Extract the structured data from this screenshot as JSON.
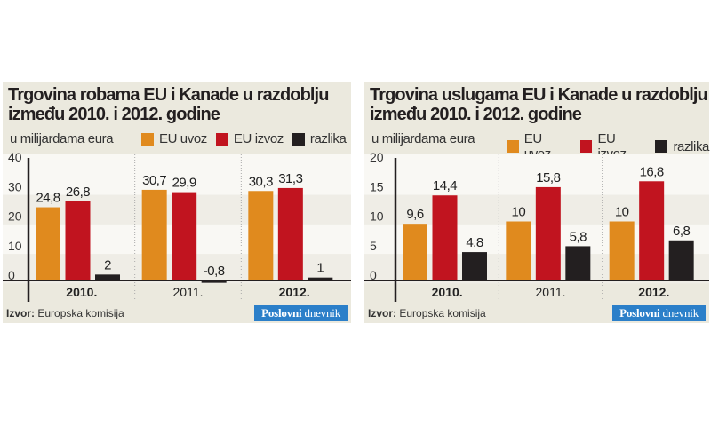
{
  "colors": {
    "EU uvoz": "#e08a1e",
    "EU izvoz": "#c1141f",
    "razlika": "#231f20",
    "background": "#ebe9de",
    "logo": "#2b7fc9"
  },
  "source_label": "Izvor:",
  "source_text": "Europska komisija",
  "logo": {
    "part1": "Poslovni",
    "part2": "dnevnik"
  },
  "chart_data": [
    {
      "type": "bar",
      "title_line1": "Trgovina robama EU i Kanade u razdoblju",
      "title_line2": "između 2010. i 2012. godine",
      "subtitle": "u milijardama eura",
      "categories": [
        "2010.",
        "2011.",
        "2012."
      ],
      "category_bold": [
        true,
        false,
        true
      ],
      "series": [
        {
          "name": "EU uvoz",
          "values": [
            24.8,
            30.7,
            30.3
          ],
          "labels": [
            "24,8",
            "30,7",
            "30,3"
          ]
        },
        {
          "name": "EU izvoz",
          "values": [
            26.8,
            29.9,
            31.3
          ],
          "labels": [
            "26,8",
            "29,9",
            "31,3"
          ]
        },
        {
          "name": "razlika",
          "values": [
            2,
            -0.8,
            1
          ],
          "labels": [
            "2",
            "-0,8",
            "1"
          ]
        }
      ],
      "yticks": [
        0,
        10,
        20,
        30,
        40
      ],
      "ylim": [
        0,
        40
      ],
      "legend": "top"
    },
    {
      "type": "bar",
      "title_line1": "Trgovina uslugama EU i Kanade u razdoblju",
      "title_line2": "između 2010. i 2012. godine",
      "subtitle": "u milijardama eura",
      "categories": [
        "2010.",
        "2011.",
        "2012."
      ],
      "category_bold": [
        true,
        false,
        true
      ],
      "series": [
        {
          "name": "EU uvoz",
          "values": [
            9.6,
            10,
            10
          ],
          "labels": [
            "9,6",
            "10",
            "10"
          ]
        },
        {
          "name": "EU izvoz",
          "values": [
            14.4,
            15.8,
            16.8
          ],
          "labels": [
            "14,4",
            "15,8",
            "16,8"
          ]
        },
        {
          "name": "razlika",
          "values": [
            4.8,
            5.8,
            6.8
          ],
          "labels": [
            "4,8",
            "5,8",
            "6,8"
          ]
        }
      ],
      "yticks": [
        0,
        5,
        10,
        15,
        20
      ],
      "ylim": [
        0,
        20
      ],
      "legend": "top"
    }
  ]
}
